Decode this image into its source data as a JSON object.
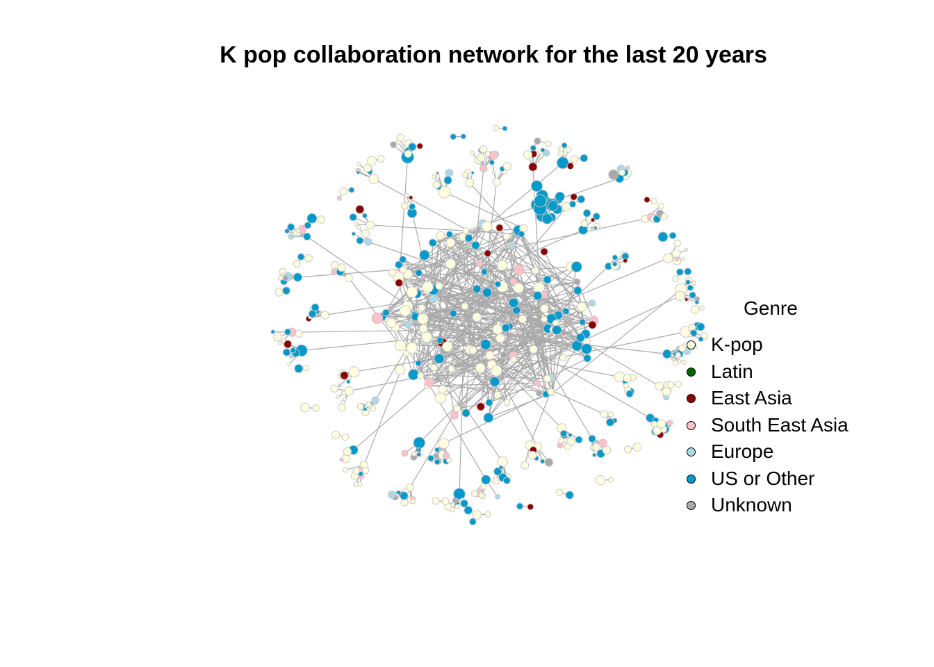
{
  "title": "K pop collaboration network for the last 20 years",
  "legend": {
    "title": "Genre",
    "items": [
      {
        "label": "K-pop",
        "color": "#ffffe0"
      },
      {
        "label": "Latin",
        "color": "#006400"
      },
      {
        "label": "East Asia",
        "color": "#8b0000"
      },
      {
        "label": "South East Asia",
        "color": "#ffc0cb"
      },
      {
        "label": "Europe",
        "color": "#add8e6"
      },
      {
        "label": "US or Other",
        "color": "#0099cc"
      },
      {
        "label": "Unknown",
        "color": "#a9a9a9"
      }
    ]
  },
  "colors": {
    "edge": "#a9a9a9",
    "node_border": "#c8c8c8",
    "background": "#ffffff"
  }
}
